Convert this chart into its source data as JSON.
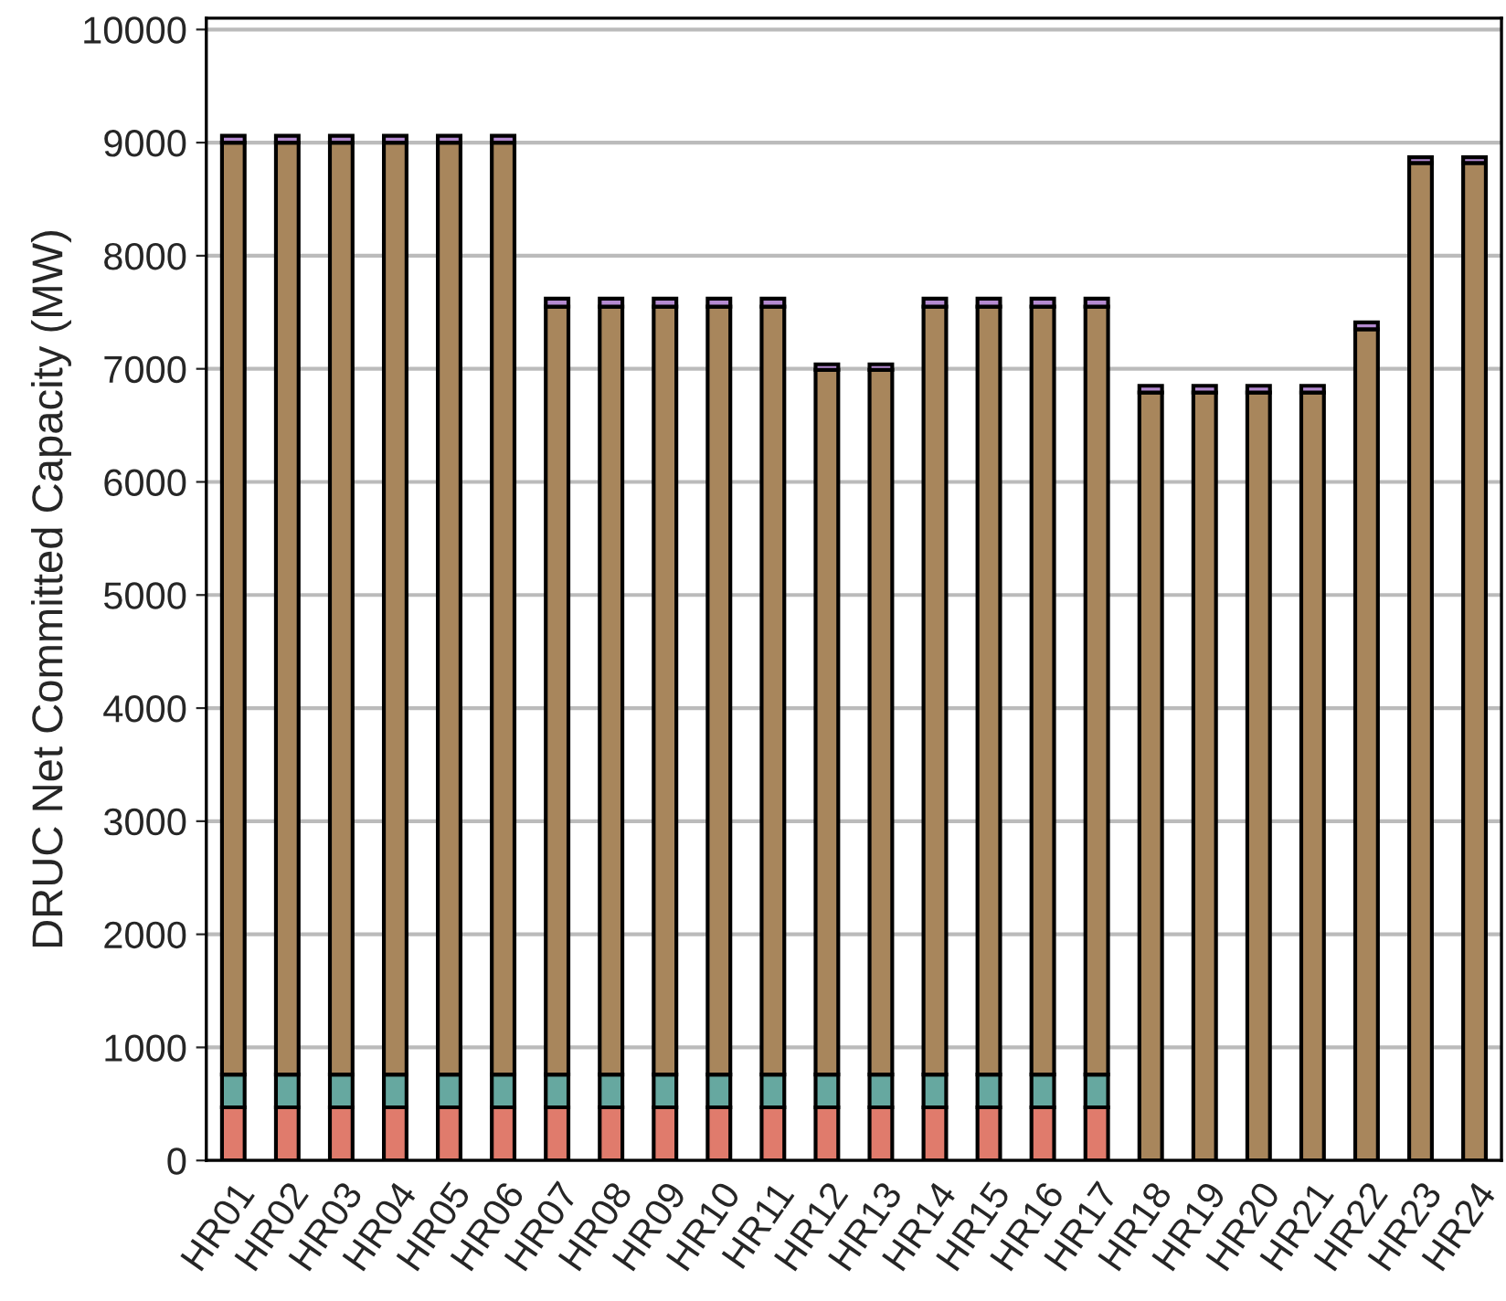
{
  "chart_data": {
    "type": "bar",
    "stacked": true,
    "ylabel": "DRUC Net Committed Capacity (MW)",
    "categories": [
      "HR01",
      "HR02",
      "HR03",
      "HR04",
      "HR05",
      "HR06",
      "HR07",
      "HR08",
      "HR09",
      "HR10",
      "HR11",
      "HR12",
      "HR13",
      "HR14",
      "HR15",
      "HR16",
      "HR17",
      "HR18",
      "HR19",
      "HR20",
      "HR21",
      "HR22",
      "HR23",
      "HR24"
    ],
    "series": [
      {
        "color": "#e07b6c",
        "values": [
          470,
          470,
          470,
          470,
          470,
          470,
          470,
          470,
          470,
          470,
          470,
          470,
          470,
          470,
          470,
          470,
          470,
          0,
          0,
          0,
          0,
          0,
          0,
          0
        ]
      },
      {
        "color": "#66a8a0",
        "values": [
          290,
          290,
          290,
          290,
          290,
          290,
          290,
          290,
          290,
          290,
          290,
          290,
          290,
          290,
          290,
          290,
          290,
          0,
          0,
          0,
          0,
          0,
          0,
          0
        ]
      },
      {
        "color": "#a8865c",
        "values": [
          8240,
          8240,
          8240,
          8240,
          8240,
          8240,
          6790,
          6790,
          6790,
          6790,
          6790,
          6230,
          6230,
          6790,
          6790,
          6790,
          6790,
          6790,
          6790,
          6790,
          6790,
          7350,
          8820,
          8820
        ]
      },
      {
        "color": "#b48ad0",
        "values": [
          60,
          60,
          60,
          60,
          60,
          60,
          70,
          70,
          70,
          70,
          70,
          50,
          50,
          70,
          70,
          70,
          70,
          60,
          60,
          60,
          60,
          60,
          50,
          50
        ]
      }
    ],
    "ylim": [
      0,
      10100
    ],
    "yticks": [
      0,
      1000,
      2000,
      3000,
      4000,
      5000,
      6000,
      7000,
      8000,
      9000,
      10000
    ],
    "grid": "y"
  }
}
